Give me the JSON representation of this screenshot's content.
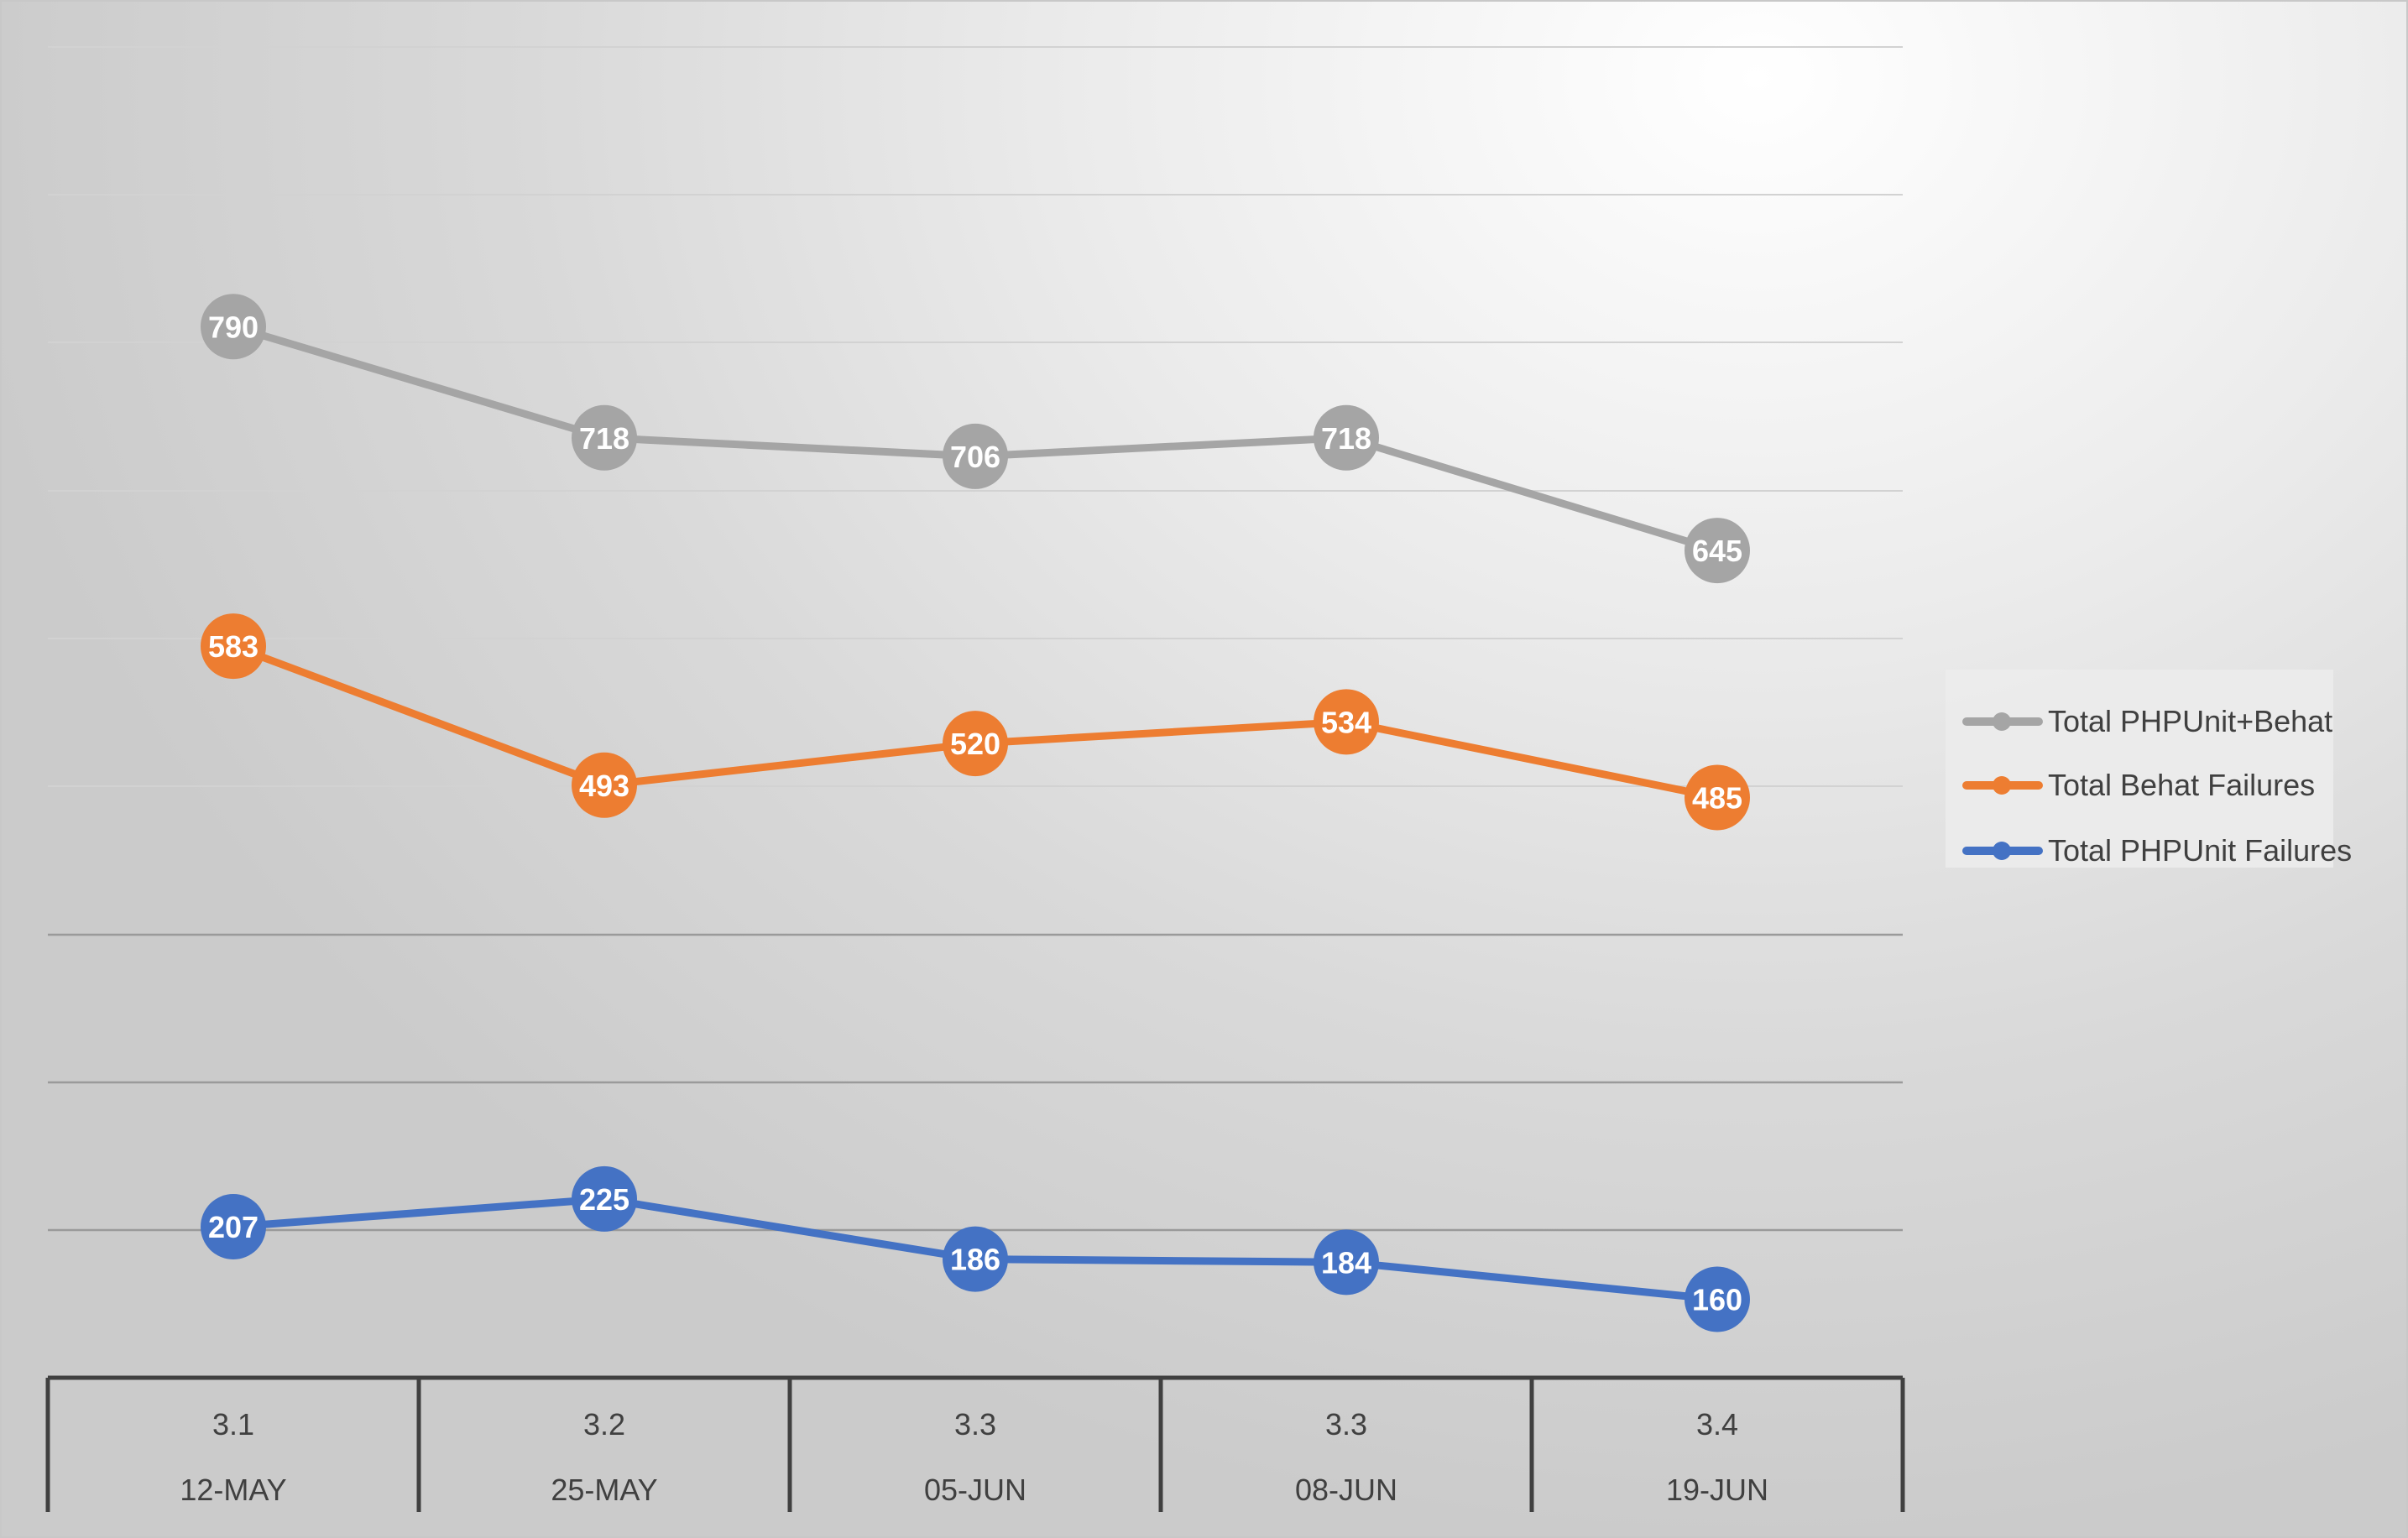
{
  "chart_data": {
    "type": "line",
    "title": "",
    "xlabel": "",
    "ylabel": "",
    "categories": [
      {
        "version": "3.1",
        "date": "12-MAY"
      },
      {
        "version": "3.2",
        "date": "25-MAY"
      },
      {
        "version": "3.3",
        "date": "05-JUN"
      },
      {
        "version": "3.3",
        "date": "08-JUN"
      },
      {
        "version": "3.4",
        "date": "19-JUN"
      }
    ],
    "series": [
      {
        "name": "Total PHPUnit+Behat",
        "color": "#a5a5a5",
        "values": [
          790,
          718,
          706,
          718,
          645
        ]
      },
      {
        "name": "Total Behat Failures",
        "color": "#ed7d31",
        "values": [
          583,
          493,
          520,
          534,
          485
        ]
      },
      {
        "name": "Total PHPUnit Failures",
        "color": "#4472c4",
        "values": [
          207,
          225,
          186,
          184,
          160
        ]
      }
    ],
    "data_labels": true,
    "grid": true,
    "legend_position": "right"
  }
}
